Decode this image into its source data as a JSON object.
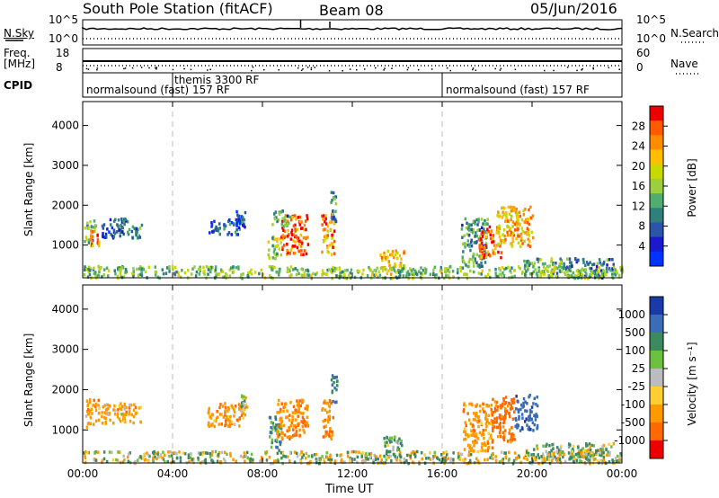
{
  "header": {
    "station": "South Pole Station (fitACF)",
    "beam": "Beam 08",
    "date": "05/Jun/2016"
  },
  "top_panels": {
    "nsky_label": "N.Sky",
    "nsearch_label": "N.Search",
    "freq_label_1": "Freq.",
    "freq_label_2": "[MHz]",
    "nave_label": "Nave",
    "cpid_label": "CPID",
    "nsky_ticks": [
      "10^5",
      "10^0"
    ],
    "nsearch_ticks": [
      "10^5",
      "10^0"
    ],
    "freq_ticks": [
      "18",
      "8"
    ],
    "nave_ticks": [
      "60",
      "0"
    ]
  },
  "cpid_segments": [
    {
      "label": "normalsound (fast) 157 RF",
      "start_hour": 0
    },
    {
      "label": "themis 3300 RF",
      "start_hour": 4
    },
    {
      "label": "normalsound (fast) 157 RF",
      "start_hour": 16
    }
  ],
  "chart_data": [
    {
      "type": "heatmap",
      "name": "power",
      "ylabel": "Slant Range [km]",
      "yticks": [
        1000,
        2000,
        3000,
        4000
      ],
      "ylim": [
        180,
        4600
      ],
      "xlim": [
        0,
        24
      ],
      "colorbar_label": "Power [dB]",
      "colorbar_ticks": [
        "28",
        "24",
        "20",
        "16",
        "12",
        "8",
        "4"
      ],
      "colorbar_colors": [
        "#ee0000",
        "#ff5a00",
        "#ff8c00",
        "#ffbf00",
        "#c8d800",
        "#9ccf3c",
        "#4fae6e",
        "#2f7f7a",
        "#2a55a8",
        "#1a1acc",
        "#0033ff"
      ],
      "patches": [
        {
          "t0": 0.05,
          "t1": 0.55,
          "r0": 1050,
          "r1": 1650,
          "v": 12
        },
        {
          "t0": 0.3,
          "t1": 0.7,
          "r0": 1000,
          "r1": 1400,
          "v": 24
        },
        {
          "t0": 0.8,
          "t1": 2.0,
          "r0": 1200,
          "r1": 1750,
          "v": 6
        },
        {
          "t0": 2.0,
          "t1": 2.6,
          "r0": 1200,
          "r1": 1600,
          "v": 8
        },
        {
          "t0": 5.6,
          "t1": 7.2,
          "r0": 1300,
          "r1": 1700,
          "v": 6
        },
        {
          "t0": 6.8,
          "t1": 7.2,
          "r0": 1500,
          "r1": 1900,
          "v": 4
        },
        {
          "t0": 8.2,
          "t1": 8.8,
          "r0": 700,
          "r1": 1300,
          "v": 16
        },
        {
          "t0": 8.8,
          "t1": 10.0,
          "r0": 800,
          "r1": 1800,
          "v": 26
        },
        {
          "t0": 8.4,
          "t1": 9.2,
          "r0": 1500,
          "r1": 1900,
          "v": 10
        },
        {
          "t0": 10.6,
          "t1": 11.2,
          "r0": 800,
          "r1": 1800,
          "v": 24
        },
        {
          "t0": 11.0,
          "t1": 11.3,
          "r0": 1600,
          "r1": 2500,
          "v": 10
        },
        {
          "t0": 13.2,
          "t1": 14.3,
          "r0": 300,
          "r1": 900,
          "v": 20
        },
        {
          "t0": 16.8,
          "t1": 18.0,
          "r0": 500,
          "r1": 1700,
          "v": 10
        },
        {
          "t0": 17.6,
          "t1": 18.6,
          "r0": 700,
          "r1": 1500,
          "v": 26
        },
        {
          "t0": 18.4,
          "t1": 20.0,
          "r0": 1000,
          "r1": 2000,
          "v": 22
        },
        {
          "t0": 19.6,
          "t1": 21.6,
          "r0": 300,
          "r1": 700,
          "v": 12
        },
        {
          "t0": 21.6,
          "t1": 23.6,
          "r0": 200,
          "r1": 700,
          "v": 8
        },
        {
          "t0": 0.0,
          "t1": 24.0,
          "r0": 200,
          "r1": 500,
          "v": 14
        }
      ]
    },
    {
      "type": "heatmap",
      "name": "velocity",
      "ylabel": "Slant Range [km]",
      "yticks": [
        1000,
        2000,
        3000,
        4000
      ],
      "ylim": [
        180,
        4600
      ],
      "xlim": [
        0,
        24
      ],
      "xlabel": "Time UT",
      "xticks": [
        "00:00",
        "04:00",
        "08:00",
        "12:00",
        "16:00",
        "20:00",
        "00:00"
      ],
      "colorbar_label": "Velocity [m s⁻¹]",
      "colorbar_ticks": [
        "1000",
        "500",
        "100",
        "25",
        "-25",
        "-100",
        "-500",
        "-1000"
      ],
      "colorbar_colors": [
        "#1a3aa8",
        "#3a6db5",
        "#3d8a62",
        "#6cc23e",
        "#bcbcbc",
        "#ffcf33",
        "#ff9900",
        "#ff6a00",
        "#ee0000"
      ],
      "patches": [
        {
          "t0": 0.1,
          "t1": 0.7,
          "r0": 1100,
          "r1": 1800,
          "v": -200
        },
        {
          "t0": 0.8,
          "t1": 2.6,
          "r0": 1200,
          "r1": 1700,
          "v": -150
        },
        {
          "t0": 5.5,
          "t1": 7.2,
          "r0": 1100,
          "r1": 1700,
          "v": -200
        },
        {
          "t0": 7.0,
          "t1": 7.3,
          "r0": 1500,
          "r1": 1900,
          "v": 50
        },
        {
          "t0": 8.2,
          "t1": 8.8,
          "r0": 500,
          "r1": 1400,
          "v": 200
        },
        {
          "t0": 8.6,
          "t1": 10.0,
          "r0": 800,
          "r1": 1800,
          "v": -250
        },
        {
          "t0": 10.6,
          "t1": 11.1,
          "r0": 800,
          "r1": 1800,
          "v": -300
        },
        {
          "t0": 11.0,
          "t1": 11.3,
          "r0": 1700,
          "r1": 2500,
          "v": 300
        },
        {
          "t0": 13.3,
          "t1": 14.2,
          "r0": 300,
          "r1": 900,
          "v": 150
        },
        {
          "t0": 16.9,
          "t1": 18.2,
          "r0": 500,
          "r1": 1700,
          "v": -200
        },
        {
          "t0": 18.2,
          "t1": 19.2,
          "r0": 700,
          "r1": 1900,
          "v": -400
        },
        {
          "t0": 19.2,
          "t1": 20.2,
          "r0": 1000,
          "r1": 1900,
          "v": 600
        },
        {
          "t0": 19.6,
          "t1": 22.0,
          "r0": 300,
          "r1": 700,
          "v": 80
        },
        {
          "t0": 22.0,
          "t1": 23.6,
          "r0": 200,
          "r1": 700,
          "v": 60
        },
        {
          "t0": 0.0,
          "t1": 24.0,
          "r0": 200,
          "r1": 500,
          "v": 0
        }
      ]
    }
  ]
}
